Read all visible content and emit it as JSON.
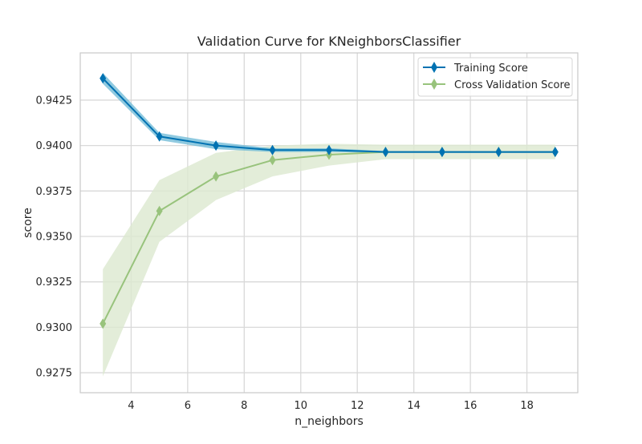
{
  "chart_data": {
    "type": "line",
    "title": "Validation Curve for KNeighborsClassifier",
    "xlabel": "n_neighbors",
    "ylabel": "score",
    "xlim": [
      2.2,
      19.8
    ],
    "ylim": [
      0.9264,
      0.9451
    ],
    "xticks": [
      4,
      6,
      8,
      10,
      12,
      14,
      16,
      18
    ],
    "yticks": [
      0.9275,
      0.93,
      0.9325,
      0.935,
      0.9375,
      0.94,
      0.9425
    ],
    "ytick_labels": [
      "0.9275",
      "0.9300",
      "0.9325",
      "0.9350",
      "0.9375",
      "0.9400",
      "0.9425"
    ],
    "x": [
      3,
      5,
      7,
      9,
      11,
      13,
      15,
      17,
      19
    ],
    "series": [
      {
        "name": "Training Score",
        "color": "#0072B2",
        "band_color": "#6BB8D6",
        "marker": "diamond",
        "values": [
          0.9437,
          0.9405,
          0.94,
          0.93975,
          0.93975,
          0.93965,
          0.93965,
          0.93965,
          0.93965
        ],
        "lower": [
          0.9434,
          0.9403,
          0.9398,
          0.93965,
          0.93965,
          0.9396,
          0.9396,
          0.9396,
          0.9396
        ],
        "upper": [
          0.944,
          0.9407,
          0.9402,
          0.93985,
          0.93985,
          0.9397,
          0.9397,
          0.9397,
          0.9397
        ]
      },
      {
        "name": "Cross Validation Score",
        "color": "#98C37C",
        "band_color": "#DCE9CF",
        "marker": "diamond",
        "values": [
          0.9302,
          0.9364,
          0.9383,
          0.9392,
          0.9395,
          0.93965,
          0.93965,
          0.93965,
          0.93965
        ],
        "lower": [
          0.9273,
          0.9347,
          0.937,
          0.9383,
          0.9389,
          0.93925,
          0.93925,
          0.93925,
          0.93925
        ],
        "upper": [
          0.9332,
          0.9381,
          0.9396,
          0.94,
          0.9401,
          0.94005,
          0.94005,
          0.94005,
          0.94005
        ]
      }
    ],
    "grid": true,
    "legend_position": "top-right"
  }
}
